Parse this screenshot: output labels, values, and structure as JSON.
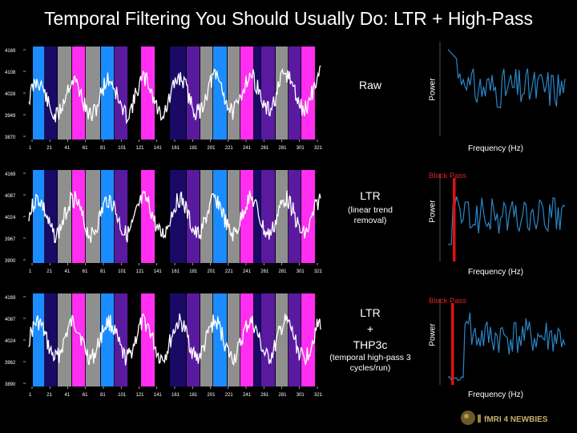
{
  "title": "Temporal Filtering You Should Usually Do: LTR + High-Pass",
  "colors": {
    "blue": "#1b8cff",
    "navy": "#1a0a66",
    "gray": "#8f8f8f",
    "magenta": "#ff2ef0",
    "purple": "#5a1aa0",
    "signal": "#ffffff",
    "spectrum": "#2a86c7",
    "cutoff": "#dd1111"
  },
  "x_ticks": [
    "1",
    "21",
    "41",
    "61",
    "81",
    "101",
    "121",
    "141",
    "161",
    "181",
    "201",
    "221",
    "241",
    "261",
    "281",
    "301",
    "321"
  ],
  "panels": [
    {
      "label": "Raw",
      "sublabel": "",
      "y_ticks": [
        "4169",
        "4108",
        "4028",
        "3949",
        "3870"
      ],
      "power_ylabel": "Power",
      "power_xlabel": "Frequency (Hz)",
      "block_pass": ""
    },
    {
      "label": "LTR",
      "sublabel": "(linear trend removal)",
      "y_ticks": [
        "4169",
        "4087",
        "4024",
        "3967",
        "3900"
      ],
      "power_ylabel": "Power",
      "power_xlabel": "Frequency (Hz)",
      "block_pass": "Block   Pass"
    },
    {
      "label_lines": [
        "LTR",
        "+",
        "THP3c"
      ],
      "sublabel": "(temporal high-pass 3 cycles/run)",
      "y_ticks": [
        "4169",
        "4087",
        "4024",
        "3962",
        "3890"
      ],
      "power_ylabel": "Power",
      "power_xlabel": "Frequency (Hz)",
      "block_pass": "Block   Pass"
    }
  ],
  "logo_text": "fMRI 4 NEWBIES"
}
